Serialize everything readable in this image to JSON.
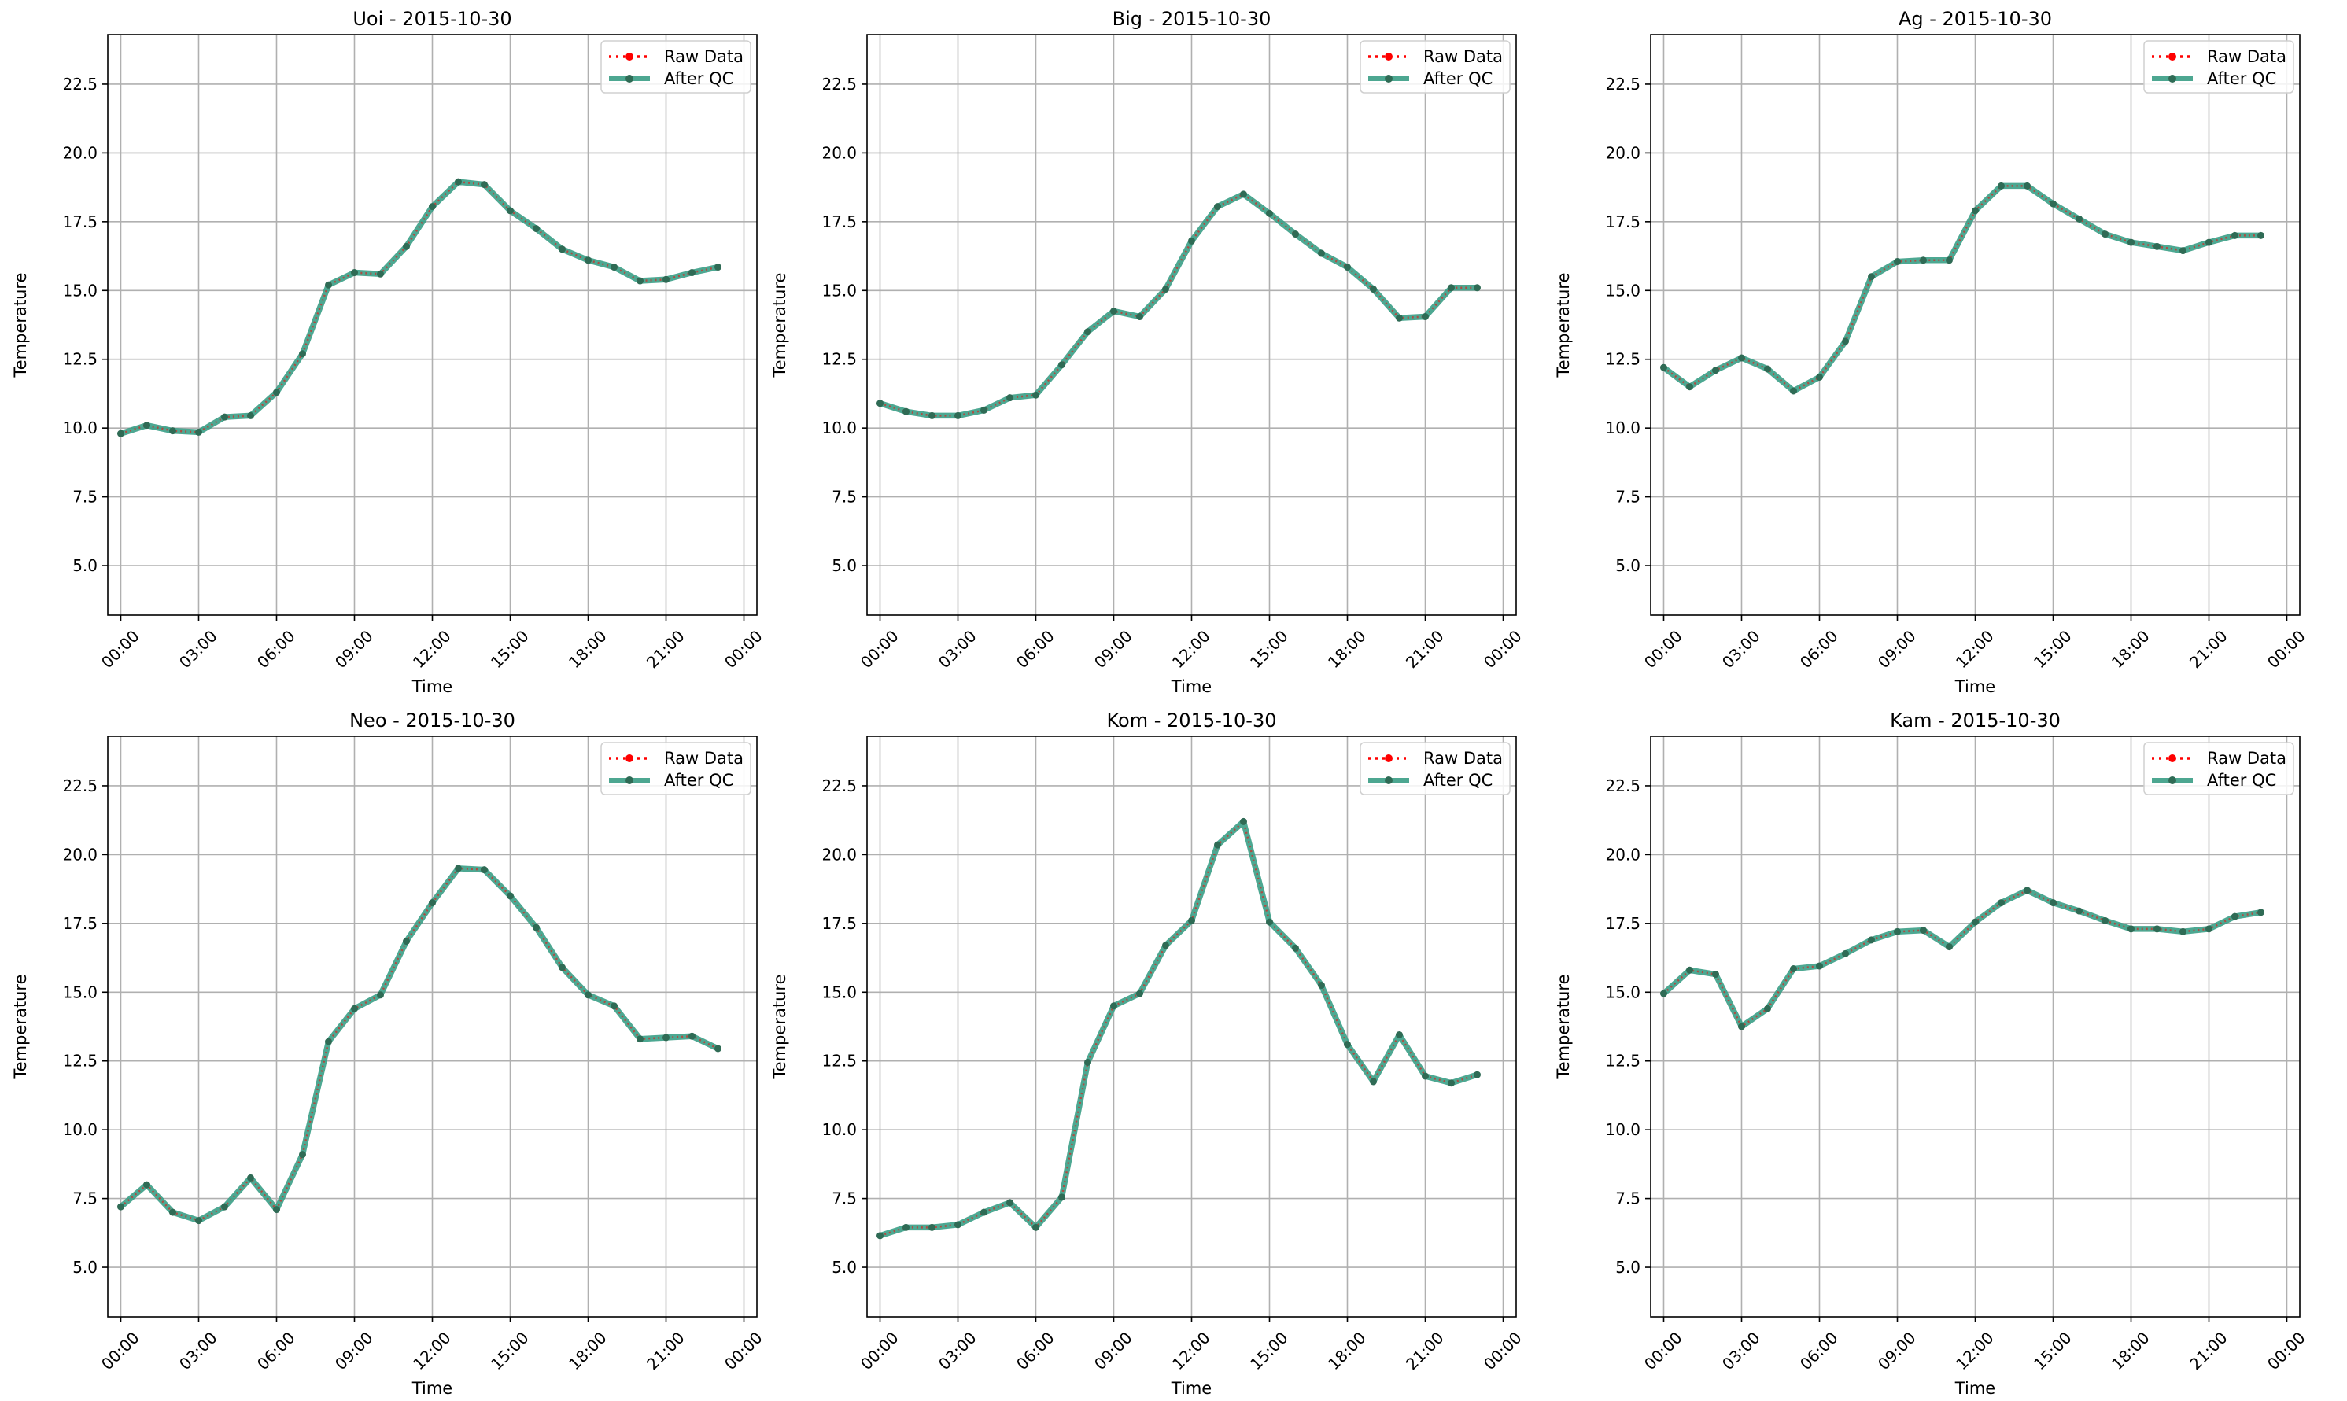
{
  "figure": {
    "colors": {
      "raw": "#ff0000",
      "qc_line": "#3a9e86",
      "qc_marker": "#2f6b55",
      "grid": "#b0b0b0",
      "axes": "#000000",
      "background": "#ffffff"
    },
    "legend_labels": [
      "Raw Data",
      "After QC"
    ]
  },
  "chart_data": [
    {
      "type": "line",
      "title": "Uoi - 2015-10-30",
      "xlabel": "Time",
      "ylabel": "Temperature",
      "x": [
        0,
        1,
        2,
        3,
        4,
        5,
        6,
        7,
        8,
        9,
        10,
        11,
        12,
        13,
        14,
        15,
        16,
        17,
        18,
        19,
        20,
        21,
        22,
        23
      ],
      "xlim": [
        -0.5,
        24.5
      ],
      "ylim": [
        3.2,
        24.3
      ],
      "xticks": [
        0,
        3,
        6,
        9,
        12,
        15,
        18,
        21,
        24
      ],
      "xticklabels": [
        "00:00",
        "03:00",
        "06:00",
        "09:00",
        "12:00",
        "15:00",
        "18:00",
        "21:00",
        "00:00"
      ],
      "yticks": [
        5.0,
        7.5,
        10.0,
        12.5,
        15.0,
        17.5,
        20.0,
        22.5
      ],
      "yticklabels": [
        "5.0",
        "7.5",
        "10.0",
        "12.5",
        "15.0",
        "17.5",
        "20.0",
        "22.5"
      ],
      "grid": true,
      "legend": "top-right",
      "series": [
        {
          "name": "Raw Data",
          "values": [
            9.8,
            10.1,
            9.9,
            9.85,
            10.4,
            10.45,
            11.3,
            12.7,
            15.2,
            15.65,
            15.6,
            16.6,
            18.05,
            18.95,
            18.85,
            17.9,
            17.25,
            16.5,
            16.1,
            15.85,
            15.35,
            15.4,
            15.65,
            15.85
          ]
        },
        {
          "name": "After QC",
          "values": [
            9.8,
            10.1,
            9.9,
            9.85,
            10.4,
            10.45,
            11.3,
            12.7,
            15.2,
            15.65,
            15.6,
            16.6,
            18.05,
            18.95,
            18.85,
            17.9,
            17.25,
            16.5,
            16.1,
            15.85,
            15.35,
            15.4,
            15.65,
            15.85
          ]
        }
      ]
    },
    {
      "type": "line",
      "title": "Big - 2015-10-30",
      "xlabel": "Time",
      "ylabel": "Temperature",
      "x": [
        0,
        1,
        2,
        3,
        4,
        5,
        6,
        7,
        8,
        9,
        10,
        11,
        12,
        13,
        14,
        15,
        16,
        17,
        18,
        19,
        20,
        21,
        22,
        23
      ],
      "xlim": [
        -0.5,
        24.5
      ],
      "ylim": [
        3.2,
        24.3
      ],
      "xticks": [
        0,
        3,
        6,
        9,
        12,
        15,
        18,
        21,
        24
      ],
      "xticklabels": [
        "00:00",
        "03:00",
        "06:00",
        "09:00",
        "12:00",
        "15:00",
        "18:00",
        "21:00",
        "00:00"
      ],
      "yticks": [
        5.0,
        7.5,
        10.0,
        12.5,
        15.0,
        17.5,
        20.0,
        22.5
      ],
      "yticklabels": [
        "5.0",
        "7.5",
        "10.0",
        "12.5",
        "15.0",
        "17.5",
        "20.0",
        "22.5"
      ],
      "grid": true,
      "legend": "top-right",
      "series": [
        {
          "name": "Raw Data",
          "values": [
            10.9,
            10.6,
            10.45,
            10.45,
            10.65,
            11.1,
            11.2,
            12.3,
            13.5,
            14.25,
            14.05,
            15.05,
            16.8,
            18.05,
            18.5,
            17.8,
            17.05,
            16.35,
            15.85,
            15.05,
            14.0,
            14.05,
            15.1,
            15.1
          ]
        },
        {
          "name": "After QC",
          "values": [
            10.9,
            10.6,
            10.45,
            10.45,
            10.65,
            11.1,
            11.2,
            12.3,
            13.5,
            14.25,
            14.05,
            15.05,
            16.8,
            18.05,
            18.5,
            17.8,
            17.05,
            16.35,
            15.85,
            15.05,
            14.0,
            14.05,
            15.1,
            15.1
          ]
        }
      ]
    },
    {
      "type": "line",
      "title": "Ag - 2015-10-30",
      "xlabel": "Time",
      "ylabel": "Temperature",
      "x": [
        0,
        1,
        2,
        3,
        4,
        5,
        6,
        7,
        8,
        9,
        10,
        11,
        12,
        13,
        14,
        15,
        16,
        17,
        18,
        19,
        20,
        21,
        22,
        23
      ],
      "xlim": [
        -0.5,
        24.5
      ],
      "ylim": [
        3.2,
        24.3
      ],
      "xticks": [
        0,
        3,
        6,
        9,
        12,
        15,
        18,
        21,
        24
      ],
      "xticklabels": [
        "00:00",
        "03:00",
        "06:00",
        "09:00",
        "12:00",
        "15:00",
        "18:00",
        "21:00",
        "00:00"
      ],
      "yticks": [
        5.0,
        7.5,
        10.0,
        12.5,
        15.0,
        17.5,
        20.0,
        22.5
      ],
      "yticklabels": [
        "5.0",
        "7.5",
        "10.0",
        "12.5",
        "15.0",
        "17.5",
        "20.0",
        "22.5"
      ],
      "grid": true,
      "legend": "top-right",
      "series": [
        {
          "name": "Raw Data",
          "values": [
            12.2,
            11.5,
            12.1,
            12.55,
            12.15,
            11.35,
            11.85,
            13.15,
            15.5,
            16.05,
            16.1,
            16.1,
            17.9,
            18.8,
            18.8,
            18.15,
            17.6,
            17.05,
            16.75,
            16.6,
            16.45,
            16.75,
            17.0,
            17.0
          ]
        },
        {
          "name": "After QC",
          "values": [
            12.2,
            11.5,
            12.1,
            12.55,
            12.15,
            11.35,
            11.85,
            13.15,
            15.5,
            16.05,
            16.1,
            16.1,
            17.9,
            18.8,
            18.8,
            18.15,
            17.6,
            17.05,
            16.75,
            16.6,
            16.45,
            16.75,
            17.0,
            17.0
          ]
        }
      ]
    },
    {
      "type": "line",
      "title": "Neo - 2015-10-30",
      "xlabel": "Time",
      "ylabel": "Temperature",
      "x": [
        0,
        1,
        2,
        3,
        4,
        5,
        6,
        7,
        8,
        9,
        10,
        11,
        12,
        13,
        14,
        15,
        16,
        17,
        18,
        19,
        20,
        21,
        22,
        23
      ],
      "xlim": [
        -0.5,
        24.5
      ],
      "ylim": [
        3.2,
        24.3
      ],
      "xticks": [
        0,
        3,
        6,
        9,
        12,
        15,
        18,
        21,
        24
      ],
      "xticklabels": [
        "00:00",
        "03:00",
        "06:00",
        "09:00",
        "12:00",
        "15:00",
        "18:00",
        "21:00",
        "00:00"
      ],
      "yticks": [
        5.0,
        7.5,
        10.0,
        12.5,
        15.0,
        17.5,
        20.0,
        22.5
      ],
      "yticklabels": [
        "5.0",
        "7.5",
        "10.0",
        "12.5",
        "15.0",
        "17.5",
        "20.0",
        "22.5"
      ],
      "grid": true,
      "legend": "top-right",
      "series": [
        {
          "name": "Raw Data",
          "values": [
            7.2,
            8.0,
            7.0,
            6.7,
            7.2,
            8.25,
            7.1,
            9.1,
            13.2,
            14.4,
            14.9,
            16.85,
            18.25,
            19.5,
            19.45,
            18.5,
            17.35,
            15.9,
            14.9,
            14.5,
            13.3,
            13.35,
            13.4,
            12.95
          ]
        },
        {
          "name": "After QC",
          "values": [
            7.2,
            8.0,
            7.0,
            6.7,
            7.2,
            8.25,
            7.1,
            9.1,
            13.2,
            14.4,
            14.9,
            16.85,
            18.25,
            19.5,
            19.45,
            18.5,
            17.35,
            15.9,
            14.9,
            14.5,
            13.3,
            13.35,
            13.4,
            12.95
          ]
        }
      ]
    },
    {
      "type": "line",
      "title": "Kom - 2015-10-30",
      "xlabel": "Time",
      "ylabel": "Temperature",
      "x": [
        0,
        1,
        2,
        3,
        4,
        5,
        6,
        7,
        8,
        9,
        10,
        11,
        12,
        13,
        14,
        15,
        16,
        17,
        18,
        19,
        20,
        21,
        22,
        23
      ],
      "xlim": [
        -0.5,
        24.5
      ],
      "ylim": [
        3.2,
        24.3
      ],
      "xticks": [
        0,
        3,
        6,
        9,
        12,
        15,
        18,
        21,
        24
      ],
      "xticklabels": [
        "00:00",
        "03:00",
        "06:00",
        "09:00",
        "12:00",
        "15:00",
        "18:00",
        "21:00",
        "00:00"
      ],
      "yticks": [
        5.0,
        7.5,
        10.0,
        12.5,
        15.0,
        17.5,
        20.0,
        22.5
      ],
      "yticklabels": [
        "5.0",
        "7.5",
        "10.0",
        "12.5",
        "15.0",
        "17.5",
        "20.0",
        "22.5"
      ],
      "grid": true,
      "legend": "top-right",
      "series": [
        {
          "name": "Raw Data",
          "values": [
            6.15,
            6.45,
            6.45,
            6.55,
            7.0,
            7.35,
            6.45,
            7.55,
            12.45,
            14.5,
            14.95,
            16.7,
            17.6,
            20.35,
            21.2,
            17.55,
            16.6,
            15.25,
            13.1,
            11.75,
            13.45,
            11.95,
            11.7,
            12.0
          ]
        },
        {
          "name": "After QC",
          "values": [
            6.15,
            6.45,
            6.45,
            6.55,
            7.0,
            7.35,
            6.45,
            7.55,
            12.45,
            14.5,
            14.95,
            16.7,
            17.6,
            20.35,
            21.2,
            17.55,
            16.6,
            15.25,
            13.1,
            11.75,
            13.45,
            11.95,
            11.7,
            12.0
          ]
        }
      ]
    },
    {
      "type": "line",
      "title": "Kam - 2015-10-30",
      "xlabel": "Time",
      "ylabel": "Temperature",
      "x": [
        0,
        1,
        2,
        3,
        4,
        5,
        6,
        7,
        8,
        9,
        10,
        11,
        12,
        13,
        14,
        15,
        16,
        17,
        18,
        19,
        20,
        21,
        22,
        23
      ],
      "xlim": [
        -0.5,
        24.5
      ],
      "ylim": [
        3.2,
        24.3
      ],
      "xticks": [
        0,
        3,
        6,
        9,
        12,
        15,
        18,
        21,
        24
      ],
      "xticklabels": [
        "00:00",
        "03:00",
        "06:00",
        "09:00",
        "12:00",
        "15:00",
        "18:00",
        "21:00",
        "00:00"
      ],
      "yticks": [
        5.0,
        7.5,
        10.0,
        12.5,
        15.0,
        17.5,
        20.0,
        22.5
      ],
      "yticklabels": [
        "5.0",
        "7.5",
        "10.0",
        "12.5",
        "15.0",
        "17.5",
        "20.0",
        "22.5"
      ],
      "grid": true,
      "legend": "top-right",
      "series": [
        {
          "name": "Raw Data",
          "values": [
            14.95,
            15.8,
            15.65,
            13.75,
            14.4,
            15.85,
            15.95,
            16.4,
            16.9,
            17.2,
            17.25,
            16.65,
            17.55,
            18.25,
            18.7,
            18.25,
            17.95,
            17.6,
            17.3,
            17.3,
            17.2,
            17.3,
            17.75,
            17.9
          ]
        },
        {
          "name": "After QC",
          "values": [
            14.95,
            15.8,
            15.65,
            13.75,
            14.4,
            15.85,
            15.95,
            16.4,
            16.9,
            17.2,
            17.25,
            16.65,
            17.55,
            18.25,
            18.7,
            18.25,
            17.95,
            17.6,
            17.3,
            17.3,
            17.2,
            17.3,
            17.75,
            17.9
          ]
        }
      ]
    }
  ]
}
